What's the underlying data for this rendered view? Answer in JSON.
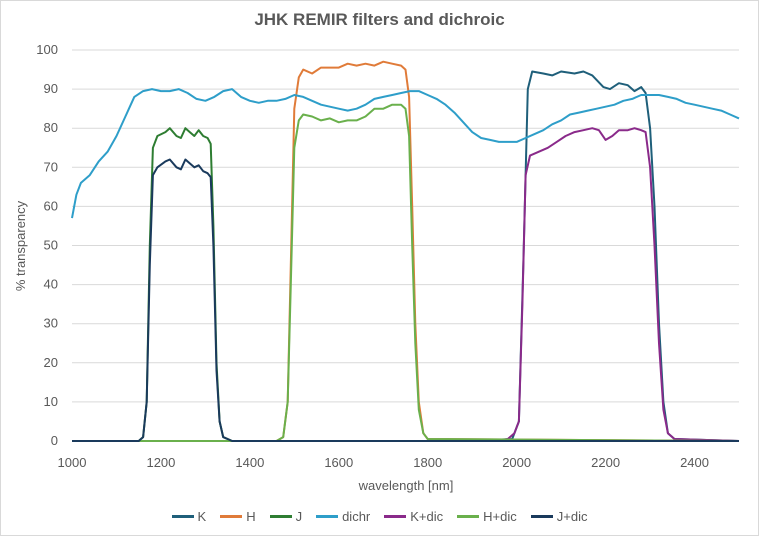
{
  "chart_data": {
    "type": "line",
    "title": "JHK REMIR filters and dichroic",
    "xlabel": "wavelength [nm]",
    "ylabel": "% transparency",
    "xlim": [
      1000,
      2500
    ],
    "ylim": [
      0,
      100
    ],
    "x_ticks": [
      1000,
      1200,
      1400,
      1600,
      1800,
      2000,
      2200,
      2400
    ],
    "y_ticks": [
      0,
      10,
      20,
      30,
      40,
      50,
      60,
      70,
      80,
      90,
      100
    ],
    "grid": "horizontal",
    "legend_position": "bottom",
    "series": [
      {
        "name": "K",
        "color": "#1f5f7a",
        "points": [
          [
            1000,
            0
          ],
          [
            1900,
            0
          ],
          [
            1990,
            0.5
          ],
          [
            2005,
            5
          ],
          [
            2015,
            45
          ],
          [
            2025,
            90
          ],
          [
            2035,
            94.5
          ],
          [
            2060,
            94
          ],
          [
            2080,
            93.5
          ],
          [
            2100,
            94.5
          ],
          [
            2130,
            94
          ],
          [
            2150,
            94.5
          ],
          [
            2170,
            93.5
          ],
          [
            2195,
            90.5
          ],
          [
            2210,
            90
          ],
          [
            2230,
            91.5
          ],
          [
            2250,
            91
          ],
          [
            2265,
            89.5
          ],
          [
            2280,
            90.5
          ],
          [
            2290,
            89
          ],
          [
            2300,
            80
          ],
          [
            2310,
            60
          ],
          [
            2320,
            30
          ],
          [
            2330,
            10
          ],
          [
            2340,
            2
          ],
          [
            2355,
            0.5
          ],
          [
            2500,
            0
          ]
        ]
      },
      {
        "name": "H",
        "color": "#e07b39",
        "points": [
          [
            1000,
            0
          ],
          [
            1460,
            0
          ],
          [
            1475,
            1
          ],
          [
            1485,
            10
          ],
          [
            1492,
            45
          ],
          [
            1500,
            85
          ],
          [
            1510,
            93
          ],
          [
            1520,
            95
          ],
          [
            1540,
            94
          ],
          [
            1560,
            95.5
          ],
          [
            1600,
            95.5
          ],
          [
            1620,
            96.5
          ],
          [
            1640,
            96
          ],
          [
            1660,
            96.5
          ],
          [
            1680,
            96
          ],
          [
            1700,
            97
          ],
          [
            1720,
            96.5
          ],
          [
            1740,
            96
          ],
          [
            1750,
            95
          ],
          [
            1758,
            88
          ],
          [
            1765,
            60
          ],
          [
            1772,
            30
          ],
          [
            1780,
            10
          ],
          [
            1790,
            2
          ],
          [
            1800,
            0.5
          ],
          [
            2500,
            0
          ]
        ]
      },
      {
        "name": "J",
        "color": "#2e7d32",
        "points": [
          [
            1000,
            0
          ],
          [
            1150,
            0
          ],
          [
            1160,
            1
          ],
          [
            1168,
            10
          ],
          [
            1175,
            50
          ],
          [
            1182,
            75
          ],
          [
            1192,
            78
          ],
          [
            1210,
            79
          ],
          [
            1220,
            80
          ],
          [
            1235,
            78
          ],
          [
            1245,
            77.5
          ],
          [
            1255,
            80
          ],
          [
            1265,
            79
          ],
          [
            1275,
            78
          ],
          [
            1285,
            79.5
          ],
          [
            1295,
            78
          ],
          [
            1305,
            77.5
          ],
          [
            1312,
            76
          ],
          [
            1318,
            55
          ],
          [
            1325,
            20
          ],
          [
            1332,
            5
          ],
          [
            1340,
            1
          ],
          [
            1360,
            0
          ],
          [
            2500,
            0
          ]
        ]
      },
      {
        "name": "dichr",
        "color": "#2e9ec9",
        "points": [
          [
            1000,
            57
          ],
          [
            1010,
            63
          ],
          [
            1020,
            66
          ],
          [
            1040,
            68
          ],
          [
            1060,
            71.5
          ],
          [
            1080,
            74
          ],
          [
            1100,
            78
          ],
          [
            1120,
            83
          ],
          [
            1140,
            88
          ],
          [
            1160,
            89.5
          ],
          [
            1180,
            90
          ],
          [
            1200,
            89.5
          ],
          [
            1220,
            89.5
          ],
          [
            1240,
            90
          ],
          [
            1260,
            89
          ],
          [
            1280,
            87.5
          ],
          [
            1300,
            87
          ],
          [
            1320,
            88
          ],
          [
            1340,
            89.5
          ],
          [
            1360,
            90
          ],
          [
            1380,
            88
          ],
          [
            1400,
            87
          ],
          [
            1420,
            86.5
          ],
          [
            1440,
            87
          ],
          [
            1460,
            87
          ],
          [
            1480,
            87.5
          ],
          [
            1500,
            88.5
          ],
          [
            1520,
            88
          ],
          [
            1540,
            87
          ],
          [
            1560,
            86
          ],
          [
            1580,
            85.5
          ],
          [
            1600,
            85
          ],
          [
            1620,
            84.5
          ],
          [
            1640,
            85
          ],
          [
            1660,
            86
          ],
          [
            1680,
            87.5
          ],
          [
            1700,
            88
          ],
          [
            1720,
            88.5
          ],
          [
            1740,
            89
          ],
          [
            1760,
            89.5
          ],
          [
            1780,
            89.5
          ],
          [
            1800,
            88.5
          ],
          [
            1820,
            87.5
          ],
          [
            1840,
            86
          ],
          [
            1860,
            84
          ],
          [
            1880,
            81.5
          ],
          [
            1900,
            79
          ],
          [
            1920,
            77.5
          ],
          [
            1940,
            77
          ],
          [
            1960,
            76.5
          ],
          [
            1980,
            76.5
          ],
          [
            2000,
            76.5
          ],
          [
            2020,
            77.5
          ],
          [
            2040,
            78.5
          ],
          [
            2060,
            79.5
          ],
          [
            2080,
            81
          ],
          [
            2100,
            82
          ],
          [
            2120,
            83.5
          ],
          [
            2140,
            84
          ],
          [
            2160,
            84.5
          ],
          [
            2180,
            85
          ],
          [
            2200,
            85.5
          ],
          [
            2220,
            86
          ],
          [
            2240,
            87
          ],
          [
            2260,
            87.5
          ],
          [
            2280,
            88.5
          ],
          [
            2300,
            88.5
          ],
          [
            2320,
            88.5
          ],
          [
            2340,
            88
          ],
          [
            2360,
            87.5
          ],
          [
            2380,
            86.5
          ],
          [
            2400,
            86
          ],
          [
            2420,
            85.5
          ],
          [
            2440,
            85
          ],
          [
            2460,
            84.5
          ],
          [
            2480,
            83.5
          ],
          [
            2500,
            82.5
          ]
        ]
      },
      {
        "name": "K+dic",
        "color": "#8a2a8a",
        "points": [
          [
            1000,
            0
          ],
          [
            1950,
            0
          ],
          [
            1980,
            0.5
          ],
          [
            1995,
            2
          ],
          [
            2005,
            5
          ],
          [
            2013,
            35
          ],
          [
            2020,
            68
          ],
          [
            2030,
            73
          ],
          [
            2050,
            74
          ],
          [
            2070,
            75
          ],
          [
            2090,
            76.5
          ],
          [
            2110,
            78
          ],
          [
            2130,
            79
          ],
          [
            2150,
            79.5
          ],
          [
            2170,
            80
          ],
          [
            2185,
            79.5
          ],
          [
            2200,
            77
          ],
          [
            2215,
            78
          ],
          [
            2230,
            79.5
          ],
          [
            2250,
            79.5
          ],
          [
            2265,
            80
          ],
          [
            2280,
            79.5
          ],
          [
            2290,
            79
          ],
          [
            2300,
            70
          ],
          [
            2310,
            50
          ],
          [
            2320,
            25
          ],
          [
            2330,
            8
          ],
          [
            2340,
            2
          ],
          [
            2355,
            0.5
          ],
          [
            2500,
            0
          ]
        ]
      },
      {
        "name": "H+dic",
        "color": "#6ab04c",
        "points": [
          [
            1000,
            0
          ],
          [
            1460,
            0
          ],
          [
            1475,
            1
          ],
          [
            1485,
            10
          ],
          [
            1492,
            40
          ],
          [
            1500,
            75
          ],
          [
            1510,
            82
          ],
          [
            1520,
            83.5
          ],
          [
            1540,
            83
          ],
          [
            1560,
            82
          ],
          [
            1580,
            82.5
          ],
          [
            1600,
            81.5
          ],
          [
            1620,
            82
          ],
          [
            1640,
            82
          ],
          [
            1660,
            83
          ],
          [
            1680,
            85
          ],
          [
            1700,
            85
          ],
          [
            1720,
            86
          ],
          [
            1740,
            86
          ],
          [
            1750,
            85
          ],
          [
            1758,
            78
          ],
          [
            1765,
            50
          ],
          [
            1772,
            25
          ],
          [
            1780,
            8
          ],
          [
            1790,
            2
          ],
          [
            1800,
            0.5
          ],
          [
            2500,
            0
          ]
        ]
      },
      {
        "name": "J+dic",
        "color": "#1a3a5c",
        "points": [
          [
            1000,
            0
          ],
          [
            1150,
            0
          ],
          [
            1160,
            1
          ],
          [
            1168,
            10
          ],
          [
            1175,
            45
          ],
          [
            1182,
            68
          ],
          [
            1192,
            70
          ],
          [
            1210,
            71.5
          ],
          [
            1220,
            72
          ],
          [
            1235,
            70
          ],
          [
            1245,
            69.5
          ],
          [
            1255,
            72
          ],
          [
            1265,
            71
          ],
          [
            1275,
            70
          ],
          [
            1285,
            70.5
          ],
          [
            1295,
            69
          ],
          [
            1305,
            68.5
          ],
          [
            1312,
            67.5
          ],
          [
            1318,
            50
          ],
          [
            1325,
            18
          ],
          [
            1332,
            5
          ],
          [
            1340,
            1
          ],
          [
            1360,
            0
          ],
          [
            2500,
            0
          ]
        ]
      }
    ]
  }
}
